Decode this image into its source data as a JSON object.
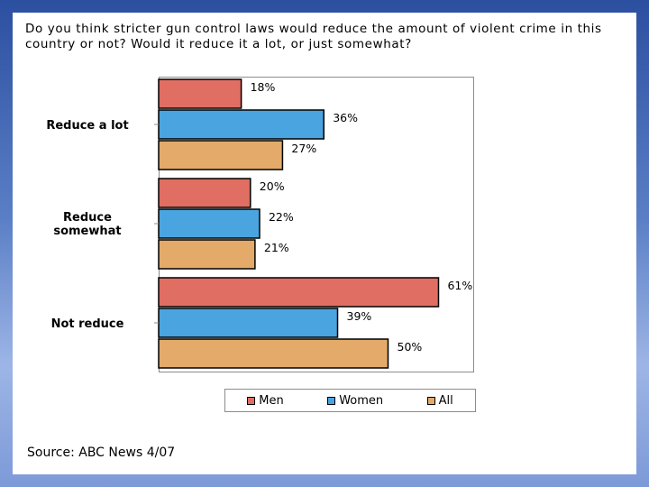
{
  "question": "Do you think stricter gun control laws would reduce the amount of violent crime in this country or not? Would it reduce it a lot, or just somewhat?",
  "source": "Source: ABC News 4/07",
  "colors": {
    "men": "#e06e62",
    "women": "#4aa4df",
    "all": "#e3aa6a"
  },
  "chart_data": {
    "type": "bar",
    "orientation": "horizontal",
    "categories": [
      "Reduce a lot",
      "Reduce somewhat",
      "Not reduce"
    ],
    "category_lines": [
      [
        "Reduce a lot"
      ],
      [
        "Reduce",
        "somewhat"
      ],
      [
        "Not reduce"
      ]
    ],
    "series": [
      {
        "name": "Men",
        "values": [
          18,
          20,
          61
        ],
        "labels": [
          "18%",
          "20%",
          "61%"
        ]
      },
      {
        "name": "Women",
        "values": [
          36,
          22,
          39
        ],
        "labels": [
          "36%",
          "22%",
          "39%"
        ]
      },
      {
        "name": "All",
        "values": [
          27,
          21,
          50
        ],
        "labels": [
          "27%",
          "21%",
          "50%"
        ]
      }
    ],
    "xlim": [
      0,
      100
    ],
    "grid": false,
    "legend_position": "bottom"
  }
}
